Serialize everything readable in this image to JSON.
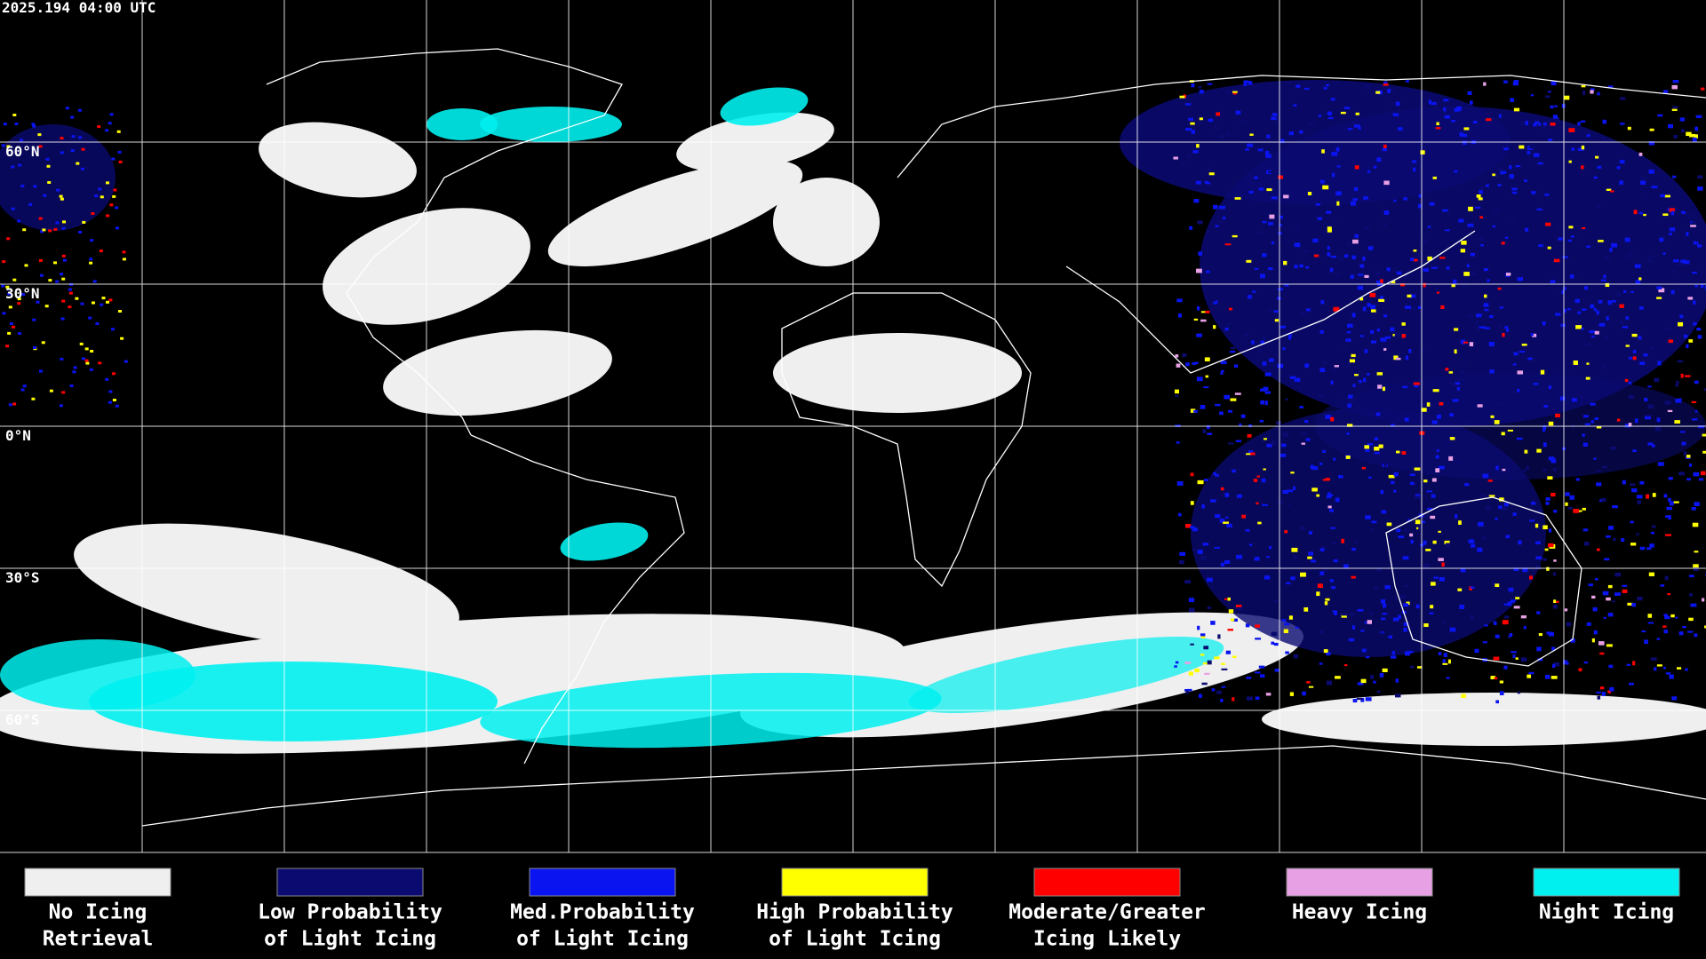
{
  "header": {
    "timestamp": "2025.194 04:00 UTC"
  },
  "map": {
    "latitude_labels": [
      "60°N",
      "30°N",
      "0°N",
      "30°S",
      "60°S"
    ]
  },
  "legend": {
    "items": [
      {
        "label_lines": [
          "No Icing",
          "Retrieval"
        ],
        "color": "#efefef"
      },
      {
        "label_lines": [
          "Low Probability",
          "of Light Icing"
        ],
        "color": "#0a0a70"
      },
      {
        "label_lines": [
          "Med.Probability",
          "of Light Icing"
        ],
        "color": "#0a14f0"
      },
      {
        "label_lines": [
          "High Probability",
          "of Light Icing"
        ],
        "color": "#ffff00"
      },
      {
        "label_lines": [
          "Moderate/Greater",
          "Icing Likely"
        ],
        "color": "#ff0000"
      },
      {
        "label_lines": [
          "Heavy Icing"
        ],
        "color": "#e8a0e4"
      },
      {
        "label_lines": [
          "Night Icing"
        ],
        "color": "#00f0f0"
      }
    ]
  }
}
